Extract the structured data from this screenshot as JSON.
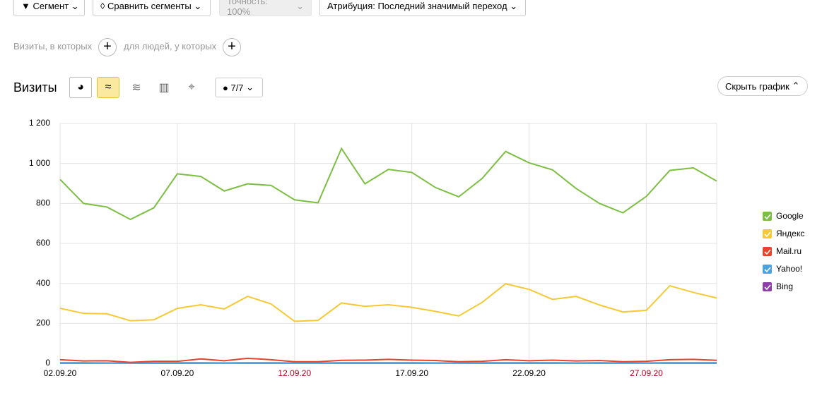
{
  "toolbar": {
    "segment": "Сегмент",
    "compare": "Сравнить сегменты",
    "accuracy": "Точность: 100%",
    "attribution": "Атрибуция: Последний значимый переход"
  },
  "filters": {
    "visits_where": "Визиты, в которых",
    "people_where": "для людей, у которых"
  },
  "chart_header": {
    "title": "Визиты",
    "annotations": "7/7",
    "hide": "Скрыть график"
  },
  "chart_data": {
    "type": "line",
    "categories": [
      "02.09.20",
      null,
      null,
      null,
      null,
      "07.09.20",
      null,
      null,
      null,
      null,
      "12.09.20",
      null,
      null,
      null,
      null,
      "17.09.20",
      null,
      null,
      null,
      null,
      "22.09.20",
      null,
      null,
      null,
      null,
      "27.09.20",
      null,
      null,
      null
    ],
    "series": [
      {
        "name": "Google",
        "color": "#7cbf43",
        "values": [
          920,
          800,
          782,
          720,
          778,
          948,
          935,
          862,
          898,
          890,
          818,
          803,
          1075,
          898,
          970,
          955,
          880,
          833,
          925,
          1060,
          1003,
          968,
          875,
          800,
          753,
          835,
          965,
          978,
          912
        ]
      },
      {
        "name": "Яндекс",
        "color": "#f6c934",
        "values": [
          275,
          250,
          248,
          213,
          218,
          275,
          293,
          272,
          335,
          297,
          210,
          215,
          302,
          285,
          293,
          280,
          260,
          237,
          305,
          398,
          370,
          320,
          335,
          292,
          257,
          265,
          388,
          355,
          327
        ]
      },
      {
        "name": "Mail.ru",
        "color": "#e8432c",
        "values": [
          18,
          12,
          13,
          5,
          10,
          10,
          22,
          13,
          25,
          18,
          8,
          8,
          15,
          16,
          20,
          16,
          14,
          8,
          10,
          18,
          13,
          16,
          12,
          14,
          8,
          10,
          18,
          20,
          15
        ]
      },
      {
        "name": "Yahoo!",
        "color": "#4aa3df",
        "values": [
          3,
          3,
          2,
          2,
          3,
          3,
          3,
          2,
          3,
          3,
          2,
          2,
          3,
          3,
          3,
          3,
          2,
          2,
          3,
          3,
          3,
          3,
          2,
          3,
          2,
          2,
          3,
          3,
          3
        ]
      },
      {
        "name": "Bing",
        "color": "#8e3fa8",
        "values": [
          1,
          1,
          1,
          1,
          1,
          1,
          1,
          1,
          1,
          1,
          1,
          1,
          1,
          1,
          1,
          1,
          1,
          1,
          1,
          1,
          1,
          1,
          1,
          1,
          1,
          1,
          1,
          1,
          1
        ]
      }
    ],
    "ylim": [
      0,
      1200
    ],
    "yticks": [
      0,
      200,
      400,
      600,
      800,
      {
        "value": 1000,
        "label": "1 000"
      },
      {
        "value": 1200,
        "label": "1 200"
      }
    ],
    "grid": true,
    "legend": "right"
  }
}
